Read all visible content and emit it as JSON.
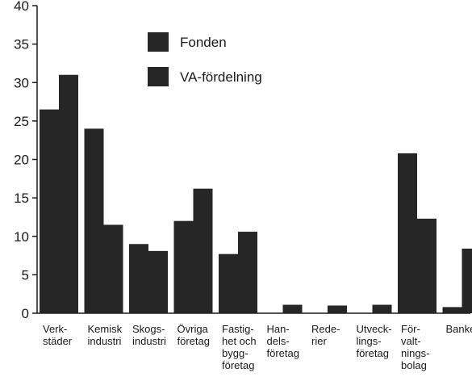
{
  "chart_data": {
    "type": "bar",
    "title": "",
    "xlabel": "",
    "ylabel": "",
    "ylim": [
      0,
      40
    ],
    "yticks": [
      0,
      5,
      10,
      15,
      20,
      25,
      30,
      35,
      40
    ],
    "grid": false,
    "legend_position": "top-center",
    "categories": [
      [
        "Verk-",
        "städer"
      ],
      [
        "Kemisk",
        "industri"
      ],
      [
        "Skogs-",
        "industri"
      ],
      [
        "Övriga",
        "företag"
      ],
      [
        "Fastig-",
        "het och",
        "bygg-",
        "företag"
      ],
      [
        "Han-",
        "dels-",
        "företag"
      ],
      [
        "Rede-",
        "rier"
      ],
      [
        "Utveck-",
        "lings-",
        "företag"
      ],
      [
        "För-",
        "valt-",
        "nings-",
        "bolag"
      ],
      [
        "Banker"
      ]
    ],
    "series": [
      {
        "name": "Fonden",
        "color": "#262626",
        "values": [
          26.5,
          24.0,
          9.0,
          12.0,
          7.7,
          0.0,
          0.0,
          0.0,
          20.8,
          0.8
        ]
      },
      {
        "name": "VA-fördelning",
        "color": "#262626",
        "values": [
          31.0,
          11.5,
          8.1,
          16.2,
          10.6,
          1.1,
          1.0,
          1.1,
          12.3,
          8.4
        ]
      }
    ]
  }
}
